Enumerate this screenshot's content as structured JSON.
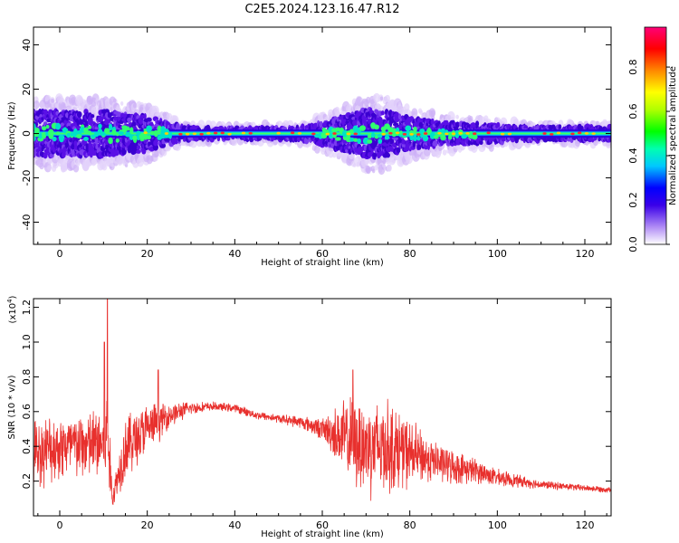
{
  "title": "C2E5.2024.123.16.47.R12",
  "chart_data": [
    {
      "type": "heatmap",
      "xlabel": "Height of straight line (km)",
      "ylabel": "Frequency (Hz)",
      "xlim": [
        -6,
        126
      ],
      "ylim": [
        -50,
        48
      ],
      "xticks": [
        0,
        20,
        40,
        60,
        80,
        100,
        120
      ],
      "yticks": [
        -40,
        -20,
        0,
        20,
        40
      ],
      "colorbar": {
        "label": "Normalized spectral amplitude",
        "range": [
          0,
          0.98
        ],
        "ticks": [
          "0.0",
          "0.2",
          "0.4",
          "0.6",
          "0.8"
        ]
      },
      "spread_profile_hz": {
        "x": [
          -6,
          0,
          10,
          20,
          28,
          35,
          45,
          55,
          60,
          65,
          70,
          75,
          80,
          90,
          100,
          105,
          115,
          126
        ],
        "halfwidth": [
          10,
          10,
          10,
          8,
          3,
          2.5,
          2.5,
          3,
          5,
          8,
          11,
          10,
          7,
          5,
          4,
          3,
          3,
          3
        ]
      }
    },
    {
      "type": "line",
      "xlabel": "Height of straight line (km)",
      "ylabel": "SNR (10 * v/v)",
      "yscale_note": "(x10",
      "yscale_exp": "4",
      "color": "#e8302d",
      "xlim": [
        -6,
        126
      ],
      "ylim": [
        0,
        1.25
      ],
      "xticks": [
        0,
        20,
        40,
        60,
        80,
        100,
        120
      ],
      "yticks": [
        "0.2",
        "0.4",
        "0.6",
        "0.8",
        "1.0",
        "1.2"
      ],
      "envelope": {
        "x": [
          -6,
          0,
          5,
          10,
          11,
          12,
          15,
          20,
          25,
          30,
          35,
          40,
          45,
          50,
          55,
          60,
          65,
          70,
          75,
          80,
          85,
          90,
          95,
          100,
          110,
          120,
          126
        ],
        "mean": [
          0.36,
          0.4,
          0.4,
          0.42,
          0.45,
          0.1,
          0.4,
          0.5,
          0.58,
          0.62,
          0.63,
          0.62,
          0.58,
          0.56,
          0.54,
          0.5,
          0.45,
          0.4,
          0.4,
          0.36,
          0.32,
          0.28,
          0.26,
          0.22,
          0.18,
          0.16,
          0.15
        ],
        "amp": [
          0.16,
          0.16,
          0.16,
          0.18,
          0.25,
          0.05,
          0.16,
          0.12,
          0.06,
          0.03,
          0.02,
          0.02,
          0.02,
          0.02,
          0.03,
          0.05,
          0.18,
          0.24,
          0.22,
          0.16,
          0.1,
          0.08,
          0.06,
          0.04,
          0.02,
          0.015,
          0.015
        ]
      },
      "peaks": [
        {
          "x": 10.9,
          "y": 1.25
        },
        {
          "x": 10.2,
          "y": 1.0
        },
        {
          "x": 22.5,
          "y": 0.84
        },
        {
          "x": 67.0,
          "y": 0.84
        }
      ]
    }
  ]
}
